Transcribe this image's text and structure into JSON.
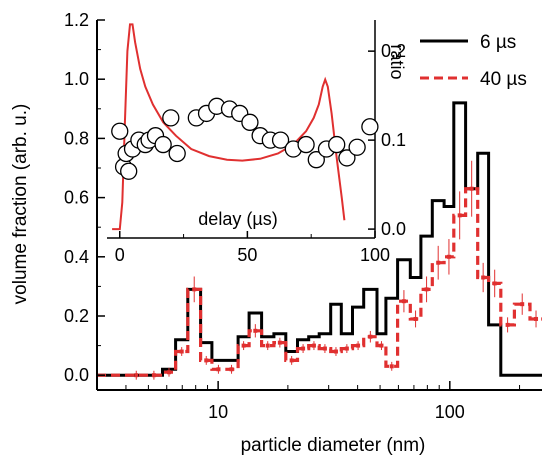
{
  "chart_data": [
    {
      "type": "line",
      "step": true,
      "xlabel": "particle diameter (nm)",
      "ylabel": "volume fraction (arb. u.)",
      "xscale": "log",
      "xlim": [
        3,
        250
      ],
      "ylim": [
        -0.05,
        1.2
      ],
      "xticks": [
        {
          "value": 10,
          "label": "10"
        },
        {
          "value": 100,
          "label": "100"
        }
      ],
      "yticks": [
        {
          "value": 0.0,
          "label": "0.0"
        },
        {
          "value": 0.2,
          "label": "0.2"
        },
        {
          "value": 0.4,
          "label": "0.4"
        },
        {
          "value": 0.6,
          "label": "0.6"
        },
        {
          "value": 0.8,
          "label": "0.8"
        },
        {
          "value": 1.0,
          "label": "1.0"
        },
        {
          "value": 1.2,
          "label": "1.2"
        }
      ],
      "legend_position": "top-right",
      "series": [
        {
          "name": "6 µs",
          "color": "#000000",
          "style": "solid",
          "points": [
            [
              3.0,
              0.0
            ],
            [
              4.05,
              0.0
            ],
            [
              4.85,
              0.0
            ],
            [
              5.75,
              0.02
            ],
            [
              6.55,
              0.12
            ],
            [
              7.4,
              0.29
            ],
            [
              8.4,
              0.11
            ],
            [
              9.4,
              0.05
            ],
            [
              10.7,
              0.05
            ],
            [
              12.2,
              0.13
            ],
            [
              13.6,
              0.21
            ],
            [
              15.4,
              0.13
            ],
            [
              17.4,
              0.14
            ],
            [
              19.6,
              0.08
            ],
            [
              22.0,
              0.12
            ],
            [
              24.6,
              0.13
            ],
            [
              27.3,
              0.14
            ],
            [
              30.6,
              0.24
            ],
            [
              34.0,
              0.14
            ],
            [
              38.0,
              0.23
            ],
            [
              42.5,
              0.29
            ],
            [
              48.5,
              0.14
            ],
            [
              53.0,
              0.26
            ],
            [
              59.5,
              0.39
            ],
            [
              67.5,
              0.33
            ],
            [
              75.0,
              0.47
            ],
            [
              84.0,
              0.59
            ],
            [
              94.5,
              0.57
            ],
            [
              104.0,
              0.92
            ],
            [
              117.0,
              0.63
            ],
            [
              132.0,
              0.75
            ],
            [
              147.0,
              0.17
            ],
            [
              166.0,
              0.0
            ],
            [
              190.0,
              0.0
            ],
            [
              222.0,
              0.0
            ]
          ]
        },
        {
          "name": "40 µs",
          "color": "#e03030",
          "style": "dashed",
          "points": [
            [
              3.0,
              0.0
            ],
            [
              4.05,
              0.0
            ],
            [
              4.85,
              0.0
            ],
            [
              5.75,
              0.01
            ],
            [
              6.55,
              0.08
            ],
            [
              7.4,
              0.29
            ],
            [
              8.4,
              0.05
            ],
            [
              9.4,
              0.02
            ],
            [
              10.7,
              0.02
            ],
            [
              12.2,
              0.1
            ],
            [
              13.6,
              0.15
            ],
            [
              15.4,
              0.1
            ],
            [
              17.4,
              0.11
            ],
            [
              19.6,
              0.05
            ],
            [
              22.0,
              0.09
            ],
            [
              24.6,
              0.1
            ],
            [
              27.3,
              0.09
            ],
            [
              30.6,
              0.08
            ],
            [
              34.0,
              0.09
            ],
            [
              38.0,
              0.1
            ],
            [
              42.5,
              0.13
            ],
            [
              48.5,
              0.1
            ],
            [
              53.0,
              0.03
            ],
            [
              59.5,
              0.25
            ],
            [
              67.5,
              0.19
            ],
            [
              75.0,
              0.29
            ],
            [
              84.0,
              0.38
            ],
            [
              94.5,
              0.4
            ],
            [
              104.0,
              0.54
            ],
            [
              117.0,
              0.63
            ],
            [
              132.0,
              0.33
            ],
            [
              147.0,
              0.31
            ],
            [
              166.0,
              0.17
            ],
            [
              190.0,
              0.24
            ],
            [
              222.0,
              0.19
            ]
          ]
        }
      ]
    },
    {
      "type": "scatter",
      "inset": true,
      "xlabel": "delay (µs)",
      "ylabel_right": "ratio",
      "xlim": [
        -5,
        100
      ],
      "ylim_right": [
        -0.01,
        0.235
      ],
      "xticks": [
        {
          "value": 0,
          "label": "0"
        },
        {
          "value": 50,
          "label": "50"
        },
        {
          "value": 100,
          "label": "100"
        }
      ],
      "yticks_right": [
        {
          "value": 0.0,
          "label": "0.0"
        },
        {
          "value": 0.1,
          "label": "0.1"
        },
        {
          "value": 0.2,
          "label": "0.2"
        }
      ],
      "points_series": {
        "marker": "open-circle",
        "color": "#000000",
        "points": [
          [
            0,
            0.11
          ],
          [
            1.5,
            0.07
          ],
          [
            2.5,
            0.085
          ],
          [
            3.5,
            0.065
          ],
          [
            5,
            0.09
          ],
          [
            7.5,
            0.1
          ],
          [
            10,
            0.095
          ],
          [
            11.5,
            0.1
          ],
          [
            14,
            0.105
          ],
          [
            17,
            0.095
          ],
          [
            20,
            0.125
          ],
          [
            22.5,
            0.085
          ],
          [
            30,
            0.125
          ],
          [
            34,
            0.13
          ],
          [
            38,
            0.138
          ],
          [
            43,
            0.135
          ],
          [
            47,
            0.13
          ],
          [
            51,
            0.12
          ],
          [
            55,
            0.105
          ],
          [
            59,
            0.1
          ],
          [
            63,
            0.1
          ],
          [
            68,
            0.09
          ],
          [
            73,
            0.095
          ],
          [
            77,
            0.078
          ],
          [
            81,
            0.09
          ],
          [
            85,
            0.095
          ],
          [
            89,
            0.08
          ],
          [
            93,
            0.092
          ],
          [
            98,
            0.115
          ]
        ]
      },
      "curve": {
        "color": "#e03030",
        "points": [
          [
            -3,
            0.0
          ],
          [
            0,
            0.0
          ],
          [
            1,
            0.03
          ],
          [
            2,
            0.12
          ],
          [
            3,
            0.2
          ],
          [
            4,
            0.23
          ],
          [
            5,
            0.23
          ],
          [
            6,
            0.21
          ],
          [
            8,
            0.18
          ],
          [
            10,
            0.16
          ],
          [
            13,
            0.14
          ],
          [
            17,
            0.12
          ],
          [
            22,
            0.105
          ],
          [
            28,
            0.09
          ],
          [
            35,
            0.082
          ],
          [
            42,
            0.078
          ],
          [
            48,
            0.077
          ],
          [
            55,
            0.079
          ],
          [
            62,
            0.085
          ],
          [
            68,
            0.095
          ],
          [
            73,
            0.11
          ],
          [
            76,
            0.125
          ],
          [
            78,
            0.14
          ],
          [
            79.5,
            0.16
          ],
          [
            80.5,
            0.168
          ],
          [
            81.5,
            0.16
          ],
          [
            83,
            0.13
          ],
          [
            85,
            0.08
          ],
          [
            87,
            0.035
          ],
          [
            88,
            0.01
          ]
        ]
      }
    }
  ]
}
